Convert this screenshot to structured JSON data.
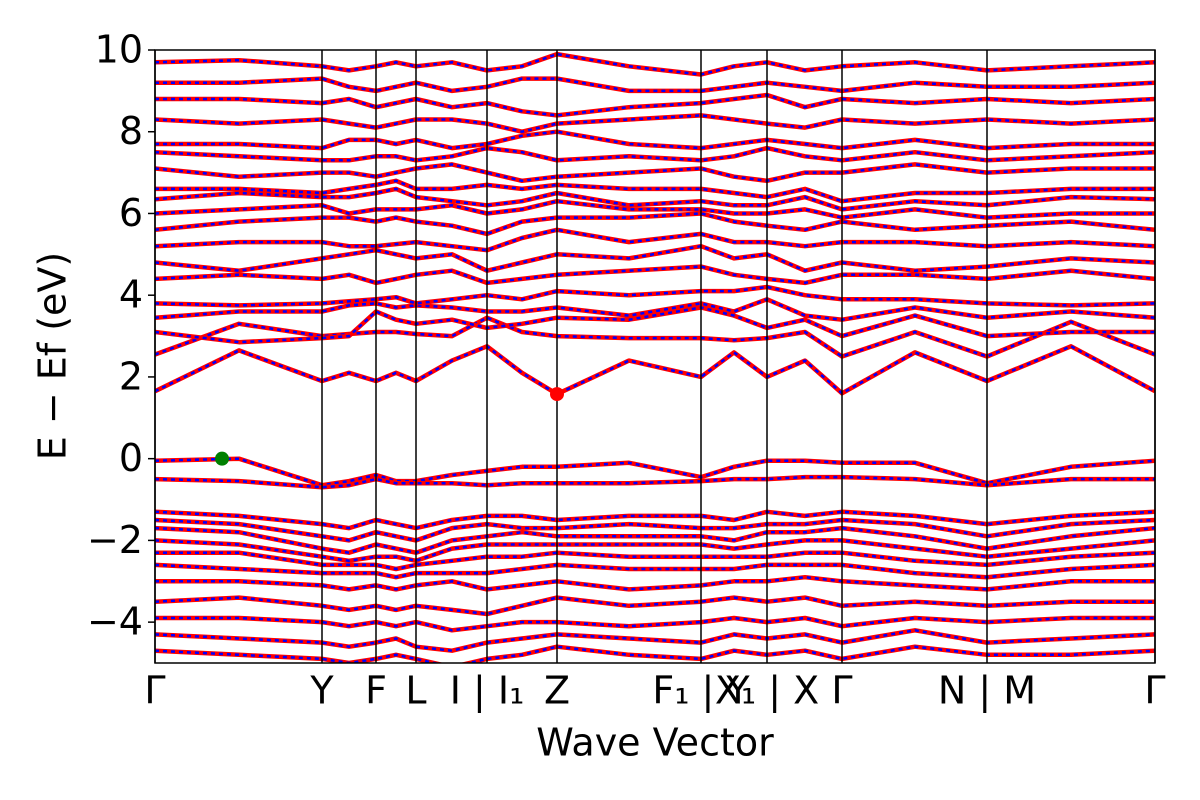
{
  "chart_data": {
    "type": "line",
    "xlabel": "Wave Vector",
    "ylabel": "E − Ef (eV)",
    "x": [
      0,
      84,
      167,
      194,
      221,
      241,
      261,
      297,
      332,
      367,
      402,
      474,
      546,
      579,
      612,
      650,
      687,
      760,
      832,
      916,
      1000
    ],
    "xlim": [
      0,
      1000
    ],
    "xticks": [
      {
        "value": 0,
        "label": "Γ"
      },
      {
        "value": 167,
        "label": "Y"
      },
      {
        "value": 221,
        "label": "F"
      },
      {
        "value": 261,
        "label": "L"
      },
      {
        "value": 332,
        "label": "I | I₁"
      },
      {
        "value": 402,
        "label": "Z"
      },
      {
        "value": 546,
        "label": "F₁ | Y"
      },
      {
        "value": 612,
        "label": "X₁ | X"
      },
      {
        "value": 687,
        "label": "Γ"
      },
      {
        "value": 832,
        "label": "N | M"
      },
      {
        "value": 1000,
        "label": "Γ"
      }
    ],
    "ylim": [
      -5,
      10
    ],
    "yticks": [
      {
        "value": -4,
        "label": "−4"
      },
      {
        "value": -2,
        "label": "−2"
      },
      0,
      2,
      4,
      6,
      8,
      10
    ],
    "overlay_color": "#0000ff",
    "series": [
      {
        "color": "#ff0000",
        "values": [
          -0.05,
          0,
          -0.65,
          -0.55,
          -0.4,
          -0.55,
          -0.55,
          -0.4,
          -0.3,
          -0.2,
          -0.2,
          -0.1,
          -0.45,
          -0.2,
          -0.05,
          -0.05,
          -0.1,
          -0.1,
          -0.6,
          -0.2,
          -0.05
        ]
      },
      {
        "color": "#ff0000",
        "values": [
          -0.5,
          -0.55,
          -0.7,
          -0.65,
          -0.5,
          -0.6,
          -0.6,
          -0.6,
          -0.65,
          -0.6,
          -0.6,
          -0.6,
          -0.55,
          -0.5,
          -0.5,
          -0.45,
          -0.45,
          -0.5,
          -0.65,
          -0.5,
          -0.5
        ]
      },
      {
        "color": "#ff0000",
        "values": [
          -1.3,
          -1.4,
          -1.6,
          -1.7,
          -1.5,
          -1.6,
          -1.7,
          -1.5,
          -1.4,
          -1.4,
          -1.5,
          -1.4,
          -1.4,
          -1.5,
          -1.3,
          -1.4,
          -1.3,
          -1.4,
          -1.6,
          -1.4,
          -1.3
        ]
      },
      {
        "color": "#ff0000",
        "values": [
          -1.5,
          -1.6,
          -1.9,
          -2.0,
          -1.8,
          -1.9,
          -2.0,
          -1.7,
          -1.6,
          -1.7,
          -1.7,
          -1.6,
          -1.7,
          -1.7,
          -1.6,
          -1.6,
          -1.5,
          -1.6,
          -1.9,
          -1.6,
          -1.5
        ]
      },
      {
        "color": "#ff0000",
        "values": [
          -1.7,
          -1.8,
          -2.2,
          -2.3,
          -2.1,
          -2.2,
          -2.3,
          -2.0,
          -1.9,
          -1.8,
          -1.9,
          -1.9,
          -1.9,
          -2.0,
          -1.8,
          -1.8,
          -1.7,
          -1.9,
          -2.2,
          -1.9,
          -1.7
        ]
      },
      {
        "color": "#ff0000",
        "values": [
          -2.0,
          -2.1,
          -2.4,
          -2.5,
          -2.4,
          -2.4,
          -2.5,
          -2.2,
          -2.1,
          -2.1,
          -2.1,
          -2.1,
          -2.1,
          -2.2,
          -2.1,
          -2.0,
          -2.0,
          -2.2,
          -2.4,
          -2.2,
          -2.0
        ]
      },
      {
        "color": "#ff0000",
        "values": [
          -2.3,
          -2.3,
          -2.6,
          -2.6,
          -2.6,
          -2.7,
          -2.6,
          -2.5,
          -2.4,
          -2.4,
          -2.3,
          -2.4,
          -2.4,
          -2.4,
          -2.4,
          -2.3,
          -2.3,
          -2.5,
          -2.6,
          -2.4,
          -2.3
        ]
      },
      {
        "color": "#ff0000",
        "values": [
          -2.6,
          -2.7,
          -2.8,
          -2.8,
          -2.8,
          -2.9,
          -2.8,
          -2.8,
          -2.8,
          -2.7,
          -2.6,
          -2.7,
          -2.7,
          -2.7,
          -2.6,
          -2.6,
          -2.6,
          -2.8,
          -2.9,
          -2.7,
          -2.6
        ]
      },
      {
        "color": "#ff0000",
        "values": [
          -3.0,
          -3.0,
          -3.1,
          -3.2,
          -3.1,
          -3.2,
          -3.1,
          -3.0,
          -3.2,
          -3.1,
          -3.0,
          -3.2,
          -3.1,
          -3.0,
          -3.0,
          -2.9,
          -3.0,
          -3.1,
          -3.2,
          -3.0,
          -3.0
        ]
      },
      {
        "color": "#ff0000",
        "values": [
          -3.5,
          -3.4,
          -3.6,
          -3.7,
          -3.6,
          -3.7,
          -3.6,
          -3.7,
          -3.8,
          -3.6,
          -3.4,
          -3.6,
          -3.5,
          -3.4,
          -3.5,
          -3.4,
          -3.6,
          -3.5,
          -3.6,
          -3.5,
          -3.5
        ]
      },
      {
        "color": "#ff0000",
        "values": [
          -3.9,
          -3.9,
          -4.0,
          -4.1,
          -4.0,
          -4.1,
          -4.0,
          -4.2,
          -4.1,
          -4.0,
          -4.0,
          -4.1,
          -4.0,
          -3.9,
          -4.0,
          -3.9,
          -4.1,
          -3.9,
          -4.0,
          -3.9,
          -3.9
        ]
      },
      {
        "color": "#ff0000",
        "values": [
          -4.3,
          -4.4,
          -4.5,
          -4.6,
          -4.5,
          -4.4,
          -4.6,
          -4.7,
          -4.5,
          -4.4,
          -4.3,
          -4.4,
          -4.5,
          -4.3,
          -4.4,
          -4.3,
          -4.5,
          -4.2,
          -4.5,
          -4.4,
          -4.3
        ]
      },
      {
        "color": "#ff0000",
        "values": [
          -4.7,
          -4.8,
          -4.9,
          -5.0,
          -4.9,
          -4.8,
          -4.9,
          -5.1,
          -4.9,
          -4.8,
          -4.6,
          -4.8,
          -4.9,
          -4.7,
          -4.8,
          -4.7,
          -4.9,
          -4.6,
          -4.8,
          -4.8,
          -4.7
        ]
      },
      {
        "color": "#ff0000",
        "values": [
          1.65,
          2.65,
          1.9,
          2.1,
          1.9,
          2.1,
          1.9,
          2.4,
          2.75,
          2.1,
          1.58,
          2.4,
          2.0,
          2.6,
          2.0,
          2.4,
          1.6,
          2.6,
          1.9,
          2.75,
          1.65
        ]
      },
      {
        "color": "#ff0000",
        "values": [
          2.55,
          3.3,
          3.0,
          3.05,
          3.1,
          3.1,
          3.05,
          3.0,
          3.45,
          3.1,
          3.0,
          2.95,
          2.95,
          2.9,
          2.95,
          3.1,
          2.5,
          3.1,
          2.5,
          3.35,
          2.55
        ]
      },
      {
        "color": "#ff0000",
        "values": [
          3.1,
          2.85,
          2.95,
          3.0,
          3.6,
          3.4,
          3.3,
          3.4,
          3.2,
          3.3,
          3.45,
          3.4,
          3.7,
          3.5,
          3.2,
          3.4,
          3.0,
          3.5,
          3.0,
          3.1,
          3.1
        ]
      },
      {
        "color": "#ff0000",
        "values": [
          3.45,
          3.6,
          3.6,
          3.75,
          3.8,
          3.7,
          3.75,
          3.7,
          3.6,
          3.6,
          3.7,
          3.5,
          3.8,
          3.6,
          3.9,
          3.5,
          3.4,
          3.7,
          3.45,
          3.6,
          3.45
        ]
      },
      {
        "color": "#ff0000",
        "values": [
          3.8,
          3.75,
          3.8,
          3.85,
          3.9,
          3.95,
          3.8,
          3.9,
          4.0,
          3.9,
          4.1,
          4.0,
          4.1,
          4.1,
          4.2,
          4.0,
          3.9,
          3.9,
          3.8,
          3.75,
          3.8
        ]
      },
      {
        "color": "#ff0000",
        "values": [
          4.4,
          4.5,
          4.4,
          4.5,
          4.3,
          4.4,
          4.5,
          4.6,
          4.3,
          4.4,
          4.5,
          4.6,
          4.7,
          4.5,
          4.4,
          4.3,
          4.5,
          4.5,
          4.4,
          4.6,
          4.4
        ]
      },
      {
        "color": "#ff0000",
        "values": [
          4.8,
          4.6,
          4.9,
          5.0,
          5.1,
          5.0,
          4.9,
          5.0,
          4.6,
          4.8,
          5.0,
          4.9,
          5.2,
          4.9,
          5.0,
          4.6,
          4.8,
          4.6,
          4.7,
          4.9,
          4.8
        ]
      },
      {
        "color": "#ff0000",
        "values": [
          5.2,
          5.3,
          5.3,
          5.2,
          5.2,
          5.25,
          5.3,
          5.2,
          5.1,
          5.4,
          5.6,
          5.3,
          5.5,
          5.3,
          5.3,
          5.2,
          5.3,
          5.3,
          5.2,
          5.3,
          5.2
        ]
      },
      {
        "color": "#ff0000",
        "values": [
          5.6,
          5.8,
          5.9,
          5.9,
          5.8,
          5.9,
          5.8,
          5.7,
          5.5,
          5.8,
          5.9,
          5.9,
          6.0,
          5.8,
          5.7,
          5.6,
          5.8,
          5.6,
          5.7,
          5.8,
          5.6
        ]
      },
      {
        "color": "#ff0000",
        "values": [
          6.0,
          6.1,
          6.2,
          6.0,
          6.1,
          6.1,
          6.1,
          6.2,
          6.0,
          6.1,
          6.3,
          6.1,
          6.1,
          6.0,
          6.0,
          6.1,
          5.9,
          6.1,
          5.9,
          6.0,
          6.0
        ]
      },
      {
        "color": "#ff0000",
        "values": [
          6.35,
          6.5,
          6.4,
          6.4,
          6.5,
          6.6,
          6.4,
          6.3,
          6.2,
          6.3,
          6.5,
          6.2,
          6.3,
          6.2,
          6.2,
          6.4,
          6.1,
          6.3,
          6.2,
          6.4,
          6.35
        ]
      },
      {
        "color": "#ff0000",
        "values": [
          6.6,
          6.6,
          6.5,
          6.6,
          6.7,
          6.8,
          6.6,
          6.6,
          6.7,
          6.6,
          6.7,
          6.6,
          6.6,
          6.5,
          6.4,
          6.6,
          6.3,
          6.5,
          6.5,
          6.6,
          6.6
        ]
      },
      {
        "color": "#ff0000",
        "values": [
          7.1,
          6.9,
          7.0,
          7.0,
          6.9,
          7.0,
          7.1,
          7.2,
          7.0,
          6.8,
          6.9,
          7.0,
          7.1,
          6.9,
          6.8,
          7.0,
          7.0,
          7.2,
          7.0,
          7.1,
          7.1
        ]
      },
      {
        "color": "#ff0000",
        "values": [
          7.5,
          7.4,
          7.3,
          7.3,
          7.4,
          7.4,
          7.3,
          7.4,
          7.6,
          7.5,
          7.3,
          7.4,
          7.3,
          7.4,
          7.6,
          7.4,
          7.3,
          7.5,
          7.3,
          7.4,
          7.5
        ]
      },
      {
        "color": "#ff0000",
        "values": [
          7.7,
          7.7,
          7.6,
          7.8,
          7.8,
          7.7,
          7.8,
          7.6,
          7.7,
          7.9,
          8.0,
          7.7,
          7.6,
          7.7,
          7.8,
          7.7,
          7.6,
          7.8,
          7.6,
          7.7,
          7.7
        ]
      },
      {
        "color": "#ff0000",
        "values": [
          8.3,
          8.2,
          8.3,
          8.2,
          8.1,
          8.2,
          8.3,
          8.3,
          8.2,
          8.0,
          8.2,
          8.3,
          8.4,
          8.3,
          8.2,
          8.1,
          8.3,
          8.2,
          8.3,
          8.2,
          8.3
        ]
      },
      {
        "color": "#ff0000",
        "values": [
          8.8,
          8.8,
          8.7,
          8.8,
          8.6,
          8.7,
          8.8,
          8.6,
          8.7,
          8.5,
          8.4,
          8.6,
          8.7,
          8.8,
          8.9,
          8.6,
          8.8,
          8.7,
          8.8,
          8.7,
          8.8
        ]
      },
      {
        "color": "#ff0000",
        "values": [
          9.2,
          9.2,
          9.3,
          9.1,
          9.0,
          9.1,
          9.2,
          9.0,
          9.1,
          9.3,
          9.3,
          9.0,
          9.0,
          9.1,
          9.2,
          9.1,
          9.0,
          9.2,
          9.1,
          9.1,
          9.2
        ]
      },
      {
        "color": "#ff0000",
        "values": [
          9.7,
          9.75,
          9.6,
          9.5,
          9.6,
          9.7,
          9.6,
          9.7,
          9.5,
          9.6,
          9.9,
          9.6,
          9.4,
          9.6,
          9.7,
          9.5,
          9.6,
          9.7,
          9.5,
          9.6,
          9.7
        ]
      }
    ],
    "markers": [
      {
        "x": 67,
        "y": 0,
        "color": "#007f00"
      },
      {
        "x": 402,
        "y": 1.58,
        "color": "#ff0000"
      }
    ]
  }
}
